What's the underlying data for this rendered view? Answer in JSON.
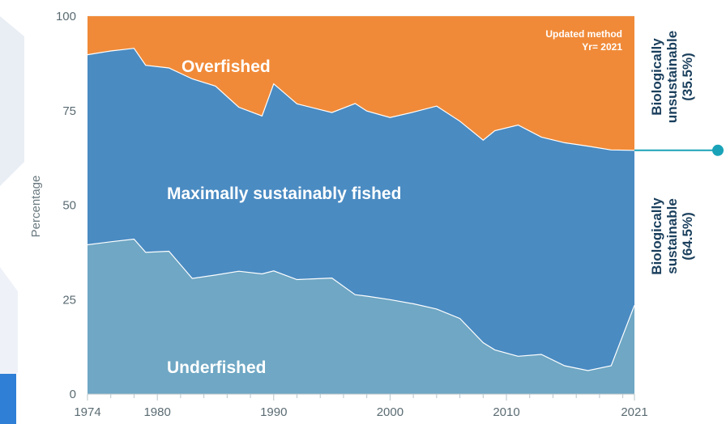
{
  "chart_data": {
    "type": "area",
    "ylabel": "Percentage",
    "xlim": [
      1974,
      2021
    ],
    "ylim": [
      0,
      100
    ],
    "x_ticks": [
      1974,
      1980,
      1990,
      2000,
      2010,
      2021
    ],
    "y_ticks": [
      0,
      25,
      50,
      75,
      100
    ],
    "x": [
      1974,
      1976,
      1978,
      1979,
      1981,
      1983,
      1985,
      1987,
      1989,
      1990,
      1992,
      1995,
      1997,
      1998,
      2000,
      2002,
      2004,
      2006,
      2008,
      2009,
      2011,
      2013,
      2015,
      2017,
      2019,
      2021
    ],
    "series": [
      {
        "name": "Underfished",
        "color": "#6fa7c4",
        "values": [
          39.5,
          40.3,
          41,
          37.5,
          37.8,
          30.6,
          31.5,
          32.5,
          31.8,
          32.6,
          30.3,
          30.7,
          26.3,
          25.9,
          25,
          23.9,
          22.5,
          20,
          13.6,
          11.7,
          10,
          10.5,
          7.5,
          6.2,
          7.5,
          23.5
        ]
      },
      {
        "name": "Maximally sustainably fished",
        "color": "#4a8bc2",
        "values": [
          50.3,
          50.5,
          50.5,
          49.5,
          48.5,
          52.8,
          50,
          43.4,
          41.8,
          49.5,
          46.5,
          43.8,
          50.6,
          49,
          48.2,
          50.7,
          53.7,
          52.2,
          53.6,
          58,
          61.2,
          57.5,
          59,
          59.4,
          57.1,
          41
        ]
      },
      {
        "name": "Overfished",
        "color": "#f08a38",
        "values": [
          10.2,
          9.2,
          8.5,
          13,
          13.7,
          16.6,
          18.5,
          24.1,
          26.4,
          17.9,
          23.2,
          25.5,
          23.1,
          25.1,
          26.8,
          25.4,
          23.8,
          27.8,
          32.8,
          30.3,
          28.8,
          32,
          33.5,
          34.4,
          35.4,
          35.5
        ]
      }
    ],
    "annotations": {
      "updated_method_line1": "Updated method",
      "updated_method_line2": "Yr= 2021",
      "unsustainable_line1": "Biologically",
      "unsustainable_line2": "unsustainable",
      "unsustainable_line3": "(35.5%)",
      "sustainable_line1": "Biologically",
      "sustainable_line2": "sustainable",
      "sustainable_line3": "(64.5%)",
      "marker_color": "#1aa3b8",
      "side_text_color": "#1a3f5c"
    }
  }
}
